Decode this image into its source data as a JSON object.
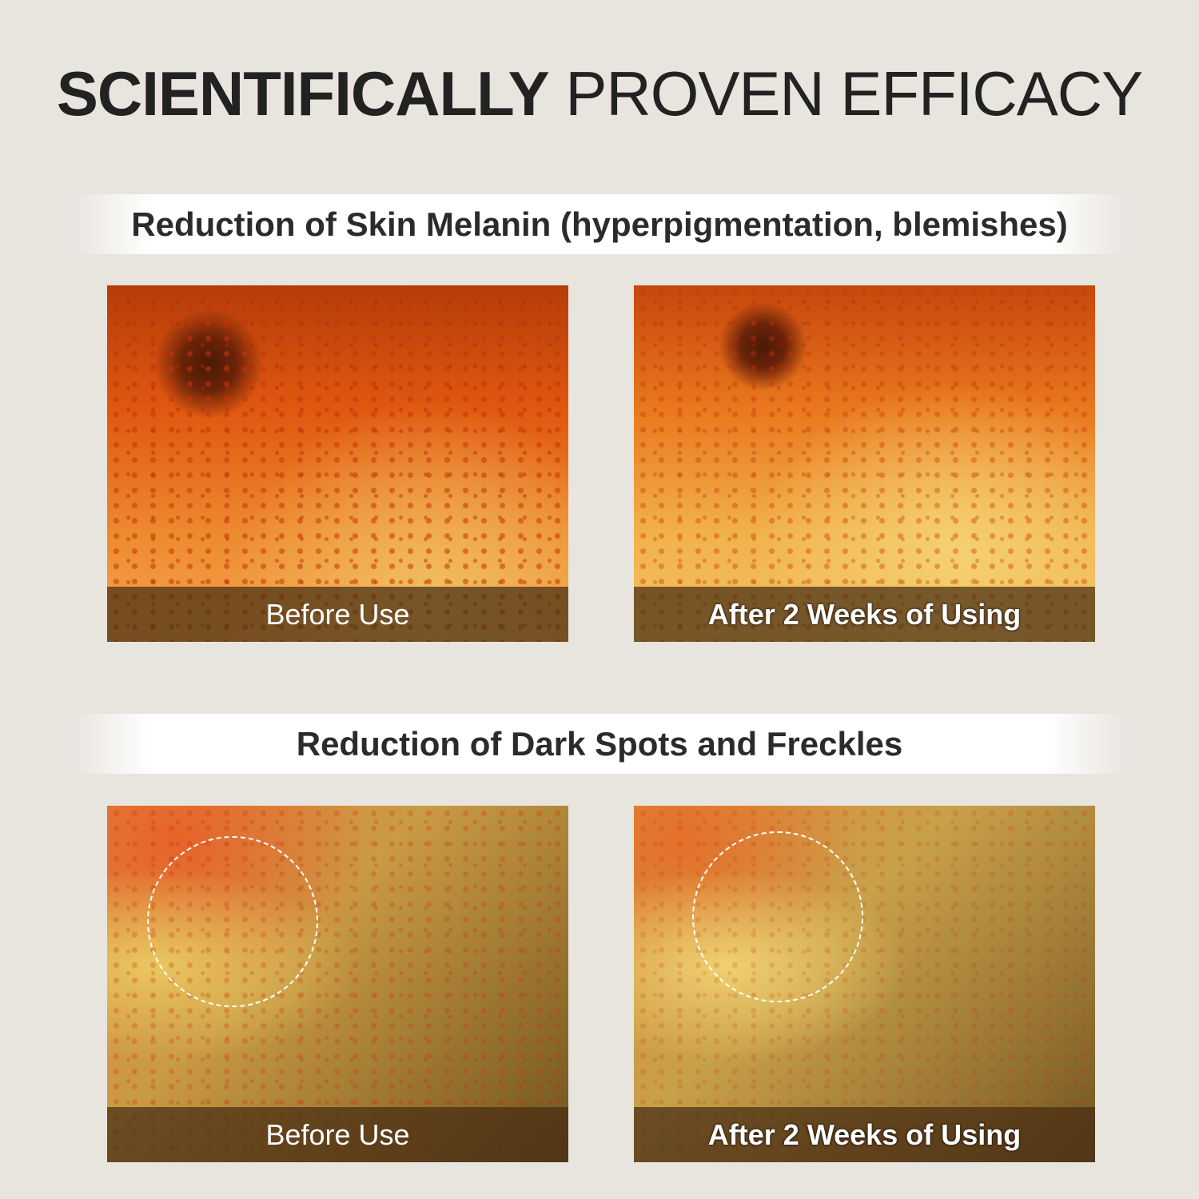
{
  "title": {
    "bold": "SCIENTIFICALLY",
    "regular": "PROVEN EFFICACY"
  },
  "sections": [
    {
      "heading": "Reduction of Skin Melanin (hyperpigmentation, blemishes)",
      "before_label": "Before Use",
      "after_label": "After 2 Weeks of Using"
    },
    {
      "heading": "Reduction of Dark Spots and Freckles",
      "before_label": "Before Use",
      "after_label": "After 2 Weeks of Using"
    }
  ]
}
